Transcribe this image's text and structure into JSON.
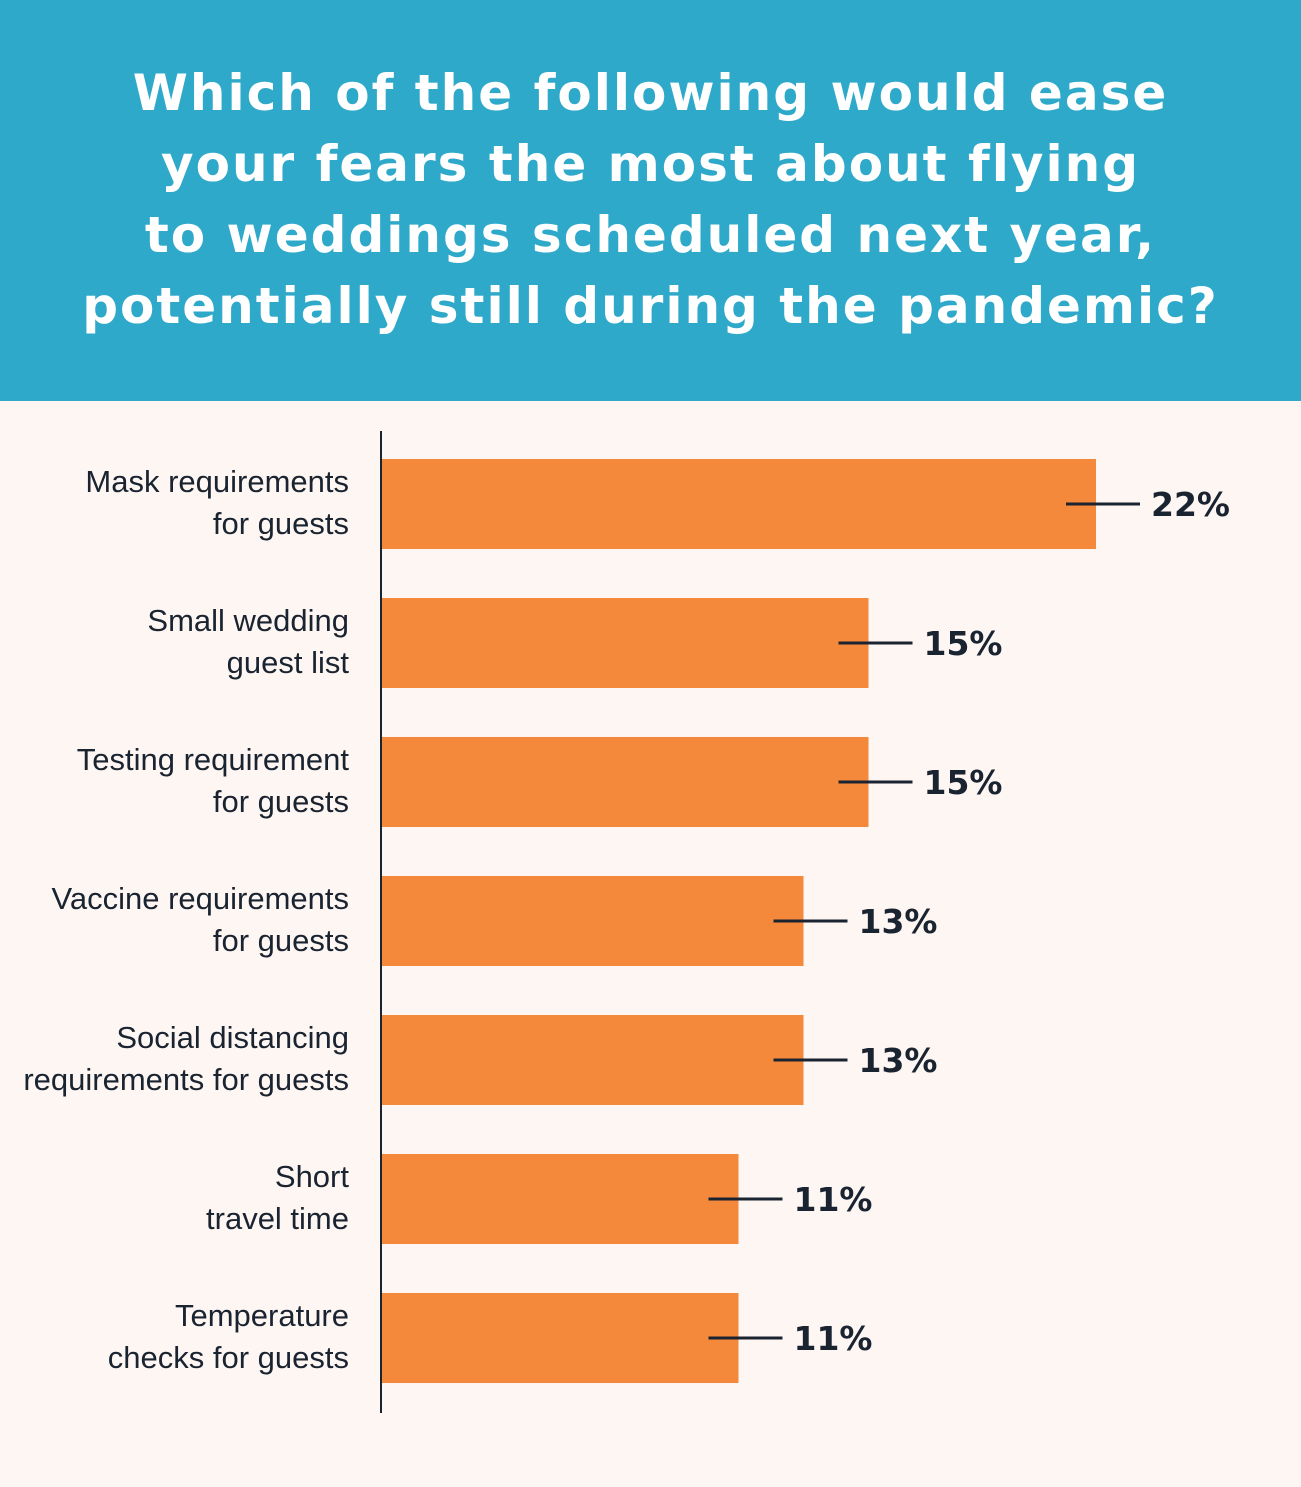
{
  "title_lines": [
    "Which of the following would ease",
    "your fears the most about flying",
    "to weddings scheduled next year,",
    "potentially still during the pandemic?"
  ],
  "colors": {
    "header_bg": "#2fa9c9",
    "background": "#fdf6f3",
    "bar": "#f5893b",
    "text": "#1a2330"
  },
  "chart_data": {
    "type": "bar",
    "orientation": "horizontal",
    "title": "Which of the following would ease your fears the most about flying to weddings scheduled next year, potentially still during the pandemic?",
    "categories": [
      [
        "Mask requirements",
        "for guests"
      ],
      [
        "Small wedding",
        "guest list"
      ],
      [
        "Testing requirement",
        "for guests"
      ],
      [
        "Vaccine requirements",
        "for guests"
      ],
      [
        "Social distancing",
        "requirements for guests"
      ],
      [
        "Short",
        "travel time"
      ],
      [
        "Temperature",
        "checks for guests"
      ]
    ],
    "values": [
      22,
      15,
      15,
      13,
      13,
      11,
      11
    ],
    "value_labels": [
      "22%",
      "15%",
      "15%",
      "13%",
      "13%",
      "11%",
      "11%"
    ],
    "unit": "%",
    "xlim": [
      0,
      22
    ],
    "grid": false,
    "legend": "none"
  }
}
